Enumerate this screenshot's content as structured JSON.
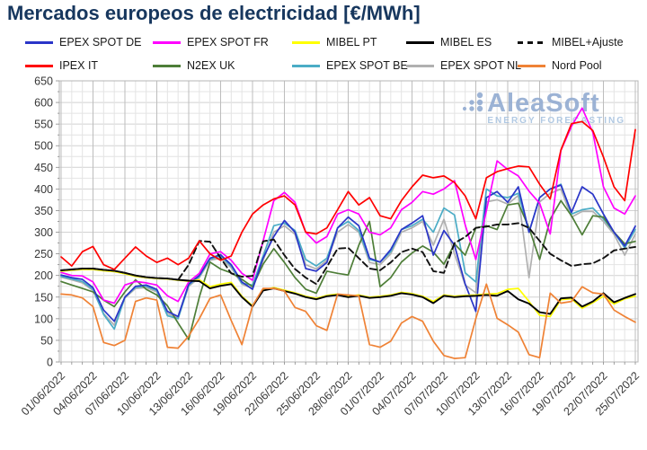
{
  "title": "Mercados europeos de electricidad [€/MWh]",
  "watermark": {
    "name": "AleaSoft",
    "subtitle": "ENERGY FORECASTING",
    "color": "#92abd1",
    "subtitle_color": "#a9c4e0"
  },
  "chart_data": {
    "type": "line",
    "title": "Mercados europeos de electricidad [€/MWh]",
    "xlabel": "",
    "ylabel": "€/MWh",
    "ylim": [
      0,
      650
    ],
    "y_major_step": 50,
    "y_minor_step": 25,
    "x_tick_every": 3,
    "grid": "on",
    "legend_position": "top",
    "x": [
      "01/06/2022",
      "02/06/2022",
      "03/06/2022",
      "04/06/2022",
      "05/06/2022",
      "06/06/2022",
      "07/06/2022",
      "08/06/2022",
      "09/06/2022",
      "10/06/2022",
      "11/06/2022",
      "12/06/2022",
      "13/06/2022",
      "14/06/2022",
      "15/06/2022",
      "16/06/2022",
      "17/06/2022",
      "18/06/2022",
      "19/06/2022",
      "20/06/2022",
      "21/06/2022",
      "22/06/2022",
      "23/06/2022",
      "24/06/2022",
      "25/06/2022",
      "26/06/2022",
      "27/06/2022",
      "28/06/2022",
      "29/06/2022",
      "30/06/2022",
      "01/07/2022",
      "02/07/2022",
      "03/07/2022",
      "04/07/2022",
      "05/07/2022",
      "06/07/2022",
      "07/07/2022",
      "08/07/2022",
      "09/07/2022",
      "10/07/2022",
      "11/07/2022",
      "12/07/2022",
      "13/07/2022",
      "14/07/2022",
      "15/07/2022",
      "16/07/2022",
      "17/07/2022",
      "18/07/2022",
      "19/07/2022",
      "20/07/2022",
      "21/07/2022",
      "22/07/2022",
      "23/07/2022",
      "24/07/2022",
      "25/07/2022"
    ],
    "x_tick_labels": [
      "01/06/2022",
      "04/06/2022",
      "07/06/2022",
      "10/06/2022",
      "13/06/2022",
      "16/06/2022",
      "19/06/2022",
      "22/06/2022",
      "25/06/2022",
      "28/06/2022",
      "01/07/2022",
      "04/07/2022",
      "07/07/2022",
      "10/07/2022",
      "13/07/2022",
      "16/07/2022",
      "19/07/2022",
      "22/07/2022",
      "25/07/2022"
    ],
    "y_tick_labels": [
      "0",
      "50",
      "100",
      "150",
      "200",
      "250",
      "300",
      "350",
      "400",
      "450",
      "500",
      "550",
      "600",
      "650"
    ],
    "series": [
      {
        "name": "EPEX SPOT DE",
        "color": "#2a35c8",
        "dash": false,
        "values": [
          201,
          195,
          191,
          172,
          120,
          94,
          150,
          175,
          178,
          168,
          117,
          105,
          180,
          200,
          240,
          248,
          225,
          185,
          168,
          240,
          290,
          327,
          300,
          216,
          210,
          230,
          310,
          335,
          315,
          240,
          231,
          260,
          306,
          321,
          338,
          247,
          304,
          270,
          180,
          117,
          380,
          394,
          369,
          405,
          300,
          380,
          400,
          409,
          346,
          405,
          388,
          342,
          300,
          268,
          314
        ]
      },
      {
        "name": "EPEX SPOT FR",
        "color": "#ff00ff",
        "dash": false,
        "values": [
          207,
          200,
          199,
          185,
          143,
          136,
          178,
          186,
          183,
          178,
          153,
          140,
          185,
          205,
          250,
          255,
          235,
          205,
          189,
          280,
          373,
          392,
          369,
          300,
          275,
          290,
          342,
          352,
          342,
          300,
          294,
          310,
          352,
          369,
          394,
          388,
          400,
          419,
          317,
          237,
          350,
          465,
          445,
          430,
          395,
          367,
          296,
          489,
          545,
          587,
          531,
          405,
          356,
          342,
          384
        ]
      },
      {
        "name": "MIBEL PT",
        "color": "#ffff00",
        "dash": false,
        "values": [
          210,
          212,
          214,
          214,
          211,
          209,
          204,
          198,
          195,
          193,
          192,
          189,
          187,
          190,
          174,
          180,
          184,
          152,
          130,
          167,
          172,
          166,
          160,
          152,
          147,
          154,
          157,
          152,
          155,
          150,
          152,
          155,
          161,
          158,
          152,
          140,
          155,
          152,
          154,
          155,
          157,
          158,
          168,
          170,
          140,
          108,
          105,
          144,
          146,
          124,
          137,
          152,
          134,
          146,
          152
        ]
      },
      {
        "name": "MIBEL ES",
        "color": "#000000",
        "dash": false,
        "values": [
          212,
          214,
          216,
          216,
          213,
          211,
          206,
          200,
          196,
          194,
          193,
          190,
          188,
          187,
          170,
          176,
          180,
          150,
          128,
          165,
          170,
          164,
          158,
          150,
          145,
          152,
          155,
          150,
          153,
          148,
          150,
          153,
          159,
          156,
          150,
          136,
          153,
          150,
          152,
          153,
          155,
          153,
          164,
          145,
          135,
          115,
          111,
          147,
          149,
          128,
          140,
          159,
          138,
          148,
          157
        ]
      },
      {
        "name": "MIBEL+Ajuste",
        "color": "#111111",
        "dash": true,
        "values": [
          212,
          214,
          216,
          216,
          213,
          211,
          206,
          200,
          196,
          194,
          193,
          190,
          225,
          280,
          278,
          240,
          205,
          197,
          199,
          279,
          283,
          247,
          215,
          195,
          180,
          220,
          262,
          264,
          240,
          216,
          212,
          230,
          254,
          262,
          254,
          210,
          206,
          275,
          289,
          310,
          313,
          318,
          318,
          321,
          310,
          280,
          250,
          235,
          222,
          226,
          228,
          240,
          258,
          262,
          266
        ]
      },
      {
        "name": "IPEX IT",
        "color": "#ff0000",
        "dash": false,
        "values": [
          243,
          222,
          255,
          267,
          225,
          214,
          240,
          266,
          245,
          230,
          240,
          225,
          240,
          280,
          250,
          235,
          245,
          300,
          342,
          363,
          377,
          384,
          363,
          300,
          296,
          310,
          352,
          394,
          363,
          380,
          338,
          331,
          373,
          405,
          432,
          426,
          430,
          415,
          384,
          331,
          426,
          440,
          447,
          453,
          451,
          411,
          377,
          490,
          551,
          556,
          535,
          474,
          405,
          373,
          537
        ]
      },
      {
        "name": "N2EX UK",
        "color": "#4e7e38",
        "dash": false,
        "values": [
          186,
          178,
          170,
          162,
          143,
          128,
          162,
          190,
          168,
          155,
          130,
          90,
          52,
          150,
          231,
          215,
          206,
          191,
          174,
          226,
          262,
          230,
          195,
          168,
          159,
          210,
          205,
          201,
          270,
          325,
          174,
          195,
          231,
          252,
          268,
          254,
          226,
          273,
          247,
          310,
          315,
          306,
          363,
          367,
          310,
          237,
          330,
          373,
          338,
          294,
          338,
          335,
          300,
          273,
          279
        ]
      },
      {
        "name": "EPEX SPOT BE",
        "color": "#4bacc6",
        "dash": false,
        "values": [
          198,
          192,
          186,
          168,
          110,
          76,
          150,
          173,
          175,
          165,
          107,
          100,
          178,
          198,
          238,
          245,
          222,
          182,
          178,
          245,
          315,
          321,
          304,
          237,
          222,
          240,
          310,
          325,
          304,
          237,
          231,
          255,
          306,
          315,
          330,
          300,
          356,
          340,
          206,
          185,
          400,
          384,
          380,
          390,
          300,
          380,
          400,
          411,
          342,
          352,
          356,
          331,
          300,
          264,
          306
        ]
      },
      {
        "name": "EPEX SPOT NL",
        "color": "#b0b0b0",
        "dash": false,
        "values": [
          196,
          190,
          183,
          165,
          112,
          85,
          148,
          170,
          172,
          162,
          112,
          102,
          175,
          195,
          235,
          240,
          218,
          180,
          170,
          235,
          300,
          315,
          295,
          225,
          215,
          235,
          300,
          318,
          300,
          230,
          225,
          250,
          300,
          310,
          325,
          270,
          330,
          250,
          178,
          160,
          370,
          375,
          365,
          385,
          195,
          370,
          390,
          400,
          335,
          348,
          348,
          325,
          295,
          247,
          296
        ]
      },
      {
        "name": "Nord Pool",
        "color": "#ef8235",
        "dash": false,
        "values": [
          157,
          155,
          148,
          128,
          45,
          38,
          50,
          140,
          148,
          143,
          34,
          32,
          60,
          100,
          147,
          155,
          96,
          40,
          130,
          170,
          170,
          164,
          126,
          117,
          84,
          73,
          157,
          155,
          153,
          40,
          34,
          48,
          90,
          105,
          94,
          48,
          15,
          8,
          10,
          100,
          180,
          101,
          86,
          69,
          17,
          10,
          159,
          136,
          140,
          174,
          160,
          157,
          120,
          105,
          92
        ]
      }
    ]
  },
  "colors": {
    "title": "#17375e",
    "grid_minor": "#e4e4e4",
    "grid_major": "#bdbdbd",
    "axis_text": "#373737",
    "border": "#b5b5b5"
  }
}
